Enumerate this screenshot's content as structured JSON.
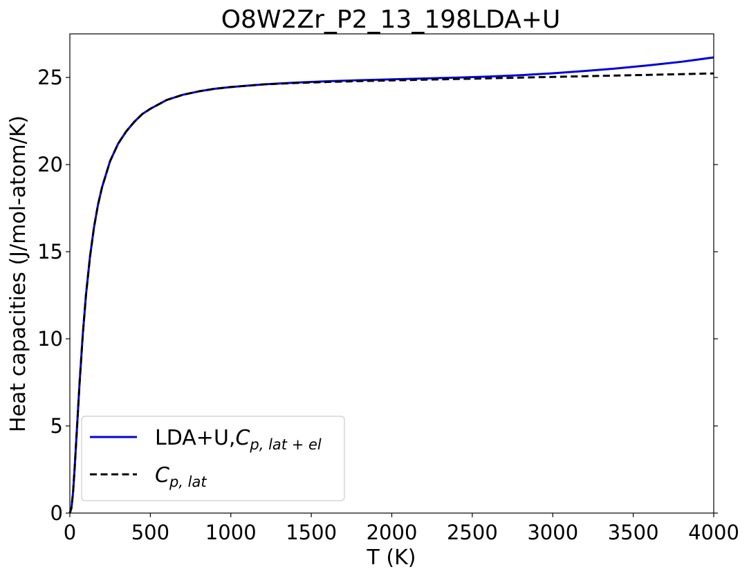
{
  "chart_data": {
    "type": "line",
    "title": "O8W2Zr_P2_13_198LDA+U",
    "xlabel": "T (K)",
    "ylabel": "Heat capacities (J/mol-atom/K)",
    "xlim": [
      0,
      4000
    ],
    "ylim": [
      0,
      27.5
    ],
    "xticks": [
      0,
      500,
      1000,
      1500,
      2000,
      2500,
      3000,
      3500,
      4000
    ],
    "yticks": [
      0,
      5,
      10,
      15,
      20,
      25
    ],
    "grid": false,
    "legend_position": "lower-left",
    "series": [
      {
        "name": "LDA+U,",
        "name_math": "C",
        "name_sub": "p, lat + el",
        "color": "#0000dd",
        "dash": "solid",
        "x": [
          0,
          10,
          20,
          30,
          40,
          50,
          60,
          80,
          100,
          125,
          150,
          175,
          200,
          250,
          300,
          350,
          400,
          450,
          500,
          600,
          700,
          800,
          900,
          1000,
          1200,
          1400,
          1600,
          1800,
          2000,
          2200,
          2400,
          2600,
          2800,
          3000,
          3200,
          3400,
          3600,
          3800,
          4000
        ],
        "y": [
          0,
          0.3,
          1.2,
          2.6,
          4.2,
          5.8,
          7.4,
          10.2,
          12.5,
          14.7,
          16.4,
          17.7,
          18.7,
          20.2,
          21.2,
          21.9,
          22.45,
          22.9,
          23.2,
          23.7,
          24.0,
          24.2,
          24.35,
          24.45,
          24.6,
          24.7,
          24.78,
          24.84,
          24.89,
          24.94,
          24.99,
          25.05,
          25.13,
          25.24,
          25.37,
          25.52,
          25.7,
          25.9,
          26.15
        ]
      },
      {
        "name": "",
        "name_math": "C",
        "name_sub": "p, lat",
        "color": "#000000",
        "dash": "dashed",
        "x": [
          0,
          10,
          20,
          30,
          40,
          50,
          60,
          80,
          100,
          125,
          150,
          175,
          200,
          250,
          300,
          350,
          400,
          450,
          500,
          600,
          700,
          800,
          900,
          1000,
          1200,
          1400,
          1600,
          1800,
          2000,
          2200,
          2400,
          2600,
          2800,
          3000,
          3200,
          3400,
          3600,
          3800,
          4000
        ],
        "y": [
          0,
          0.3,
          1.2,
          2.6,
          4.2,
          5.8,
          7.4,
          10.2,
          12.5,
          14.7,
          16.4,
          17.7,
          18.7,
          20.2,
          21.2,
          21.9,
          22.45,
          22.9,
          23.2,
          23.7,
          24.0,
          24.2,
          24.35,
          24.45,
          24.6,
          24.68,
          24.74,
          24.79,
          24.83,
          24.87,
          24.91,
          24.95,
          24.99,
          25.03,
          25.07,
          25.11,
          25.15,
          25.19,
          25.23
        ]
      }
    ]
  }
}
